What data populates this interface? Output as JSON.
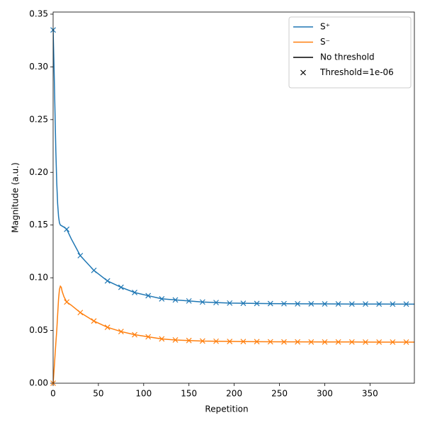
{
  "chart_data": {
    "type": "line",
    "xlabel": "Repetition",
    "ylabel": "Magnitude (a.u.)",
    "xlim": [
      0,
      399
    ],
    "ylim": [
      0,
      0.352
    ],
    "xticks": [
      0,
      50,
      100,
      150,
      200,
      250,
      300,
      350
    ],
    "yticks": [
      {
        "value": 0,
        "label": "0.00"
      },
      {
        "value": 0.05,
        "label": "0.05"
      },
      {
        "value": 0.1,
        "label": "0.10"
      },
      {
        "value": 0.15,
        "label": "0.15"
      },
      {
        "value": 0.2,
        "label": "0.20"
      },
      {
        "value": 0.25,
        "label": "0.25"
      },
      {
        "value": 0.3,
        "label": "0.30"
      },
      {
        "value": 0.35,
        "label": "0.35"
      }
    ],
    "x": [
      0,
      1,
      2,
      3,
      4,
      5,
      6,
      7,
      8,
      9,
      10,
      12,
      15,
      20,
      30,
      45,
      60,
      75,
      90,
      105,
      120,
      135,
      150,
      165,
      180,
      195,
      210,
      240,
      270,
      300,
      330,
      360,
      399
    ],
    "series": [
      {
        "name": "S⁺",
        "color": "#1f77b4",
        "values": [
          0.335,
          0.3,
          0.26,
          0.22,
          0.19,
          0.17,
          0.158,
          0.152,
          0.15,
          0.1495,
          0.149,
          0.148,
          0.146,
          0.137,
          0.121,
          0.107,
          0.097,
          0.091,
          0.086,
          0.083,
          0.08,
          0.079,
          0.078,
          0.077,
          0.0765,
          0.076,
          0.0758,
          0.0755,
          0.0753,
          0.0752,
          0.0751,
          0.0751,
          0.075
        ]
      },
      {
        "name": "S⁻",
        "color": "#ff7f0e",
        "values": [
          0,
          0.012,
          0.025,
          0.038,
          0.05,
          0.065,
          0.08,
          0.089,
          0.092,
          0.091,
          0.087,
          0.082,
          0.077,
          0.074,
          0.067,
          0.059,
          0.053,
          0.049,
          0.046,
          0.044,
          0.042,
          0.041,
          0.0405,
          0.04,
          0.0398,
          0.0396,
          0.0395,
          0.0393,
          0.0392,
          0.0391,
          0.0391,
          0.039,
          0.039
        ]
      }
    ],
    "markers": {
      "x": [
        0,
        15,
        30,
        45,
        60,
        75,
        90,
        105,
        120,
        135,
        150,
        165,
        180,
        195,
        210,
        225,
        240,
        255,
        270,
        285,
        300,
        315,
        330,
        345,
        360,
        375,
        390
      ],
      "series": [
        {
          "color": "#1f77b4",
          "values": [
            0.335,
            0.146,
            0.121,
            0.107,
            0.097,
            0.091,
            0.086,
            0.083,
            0.08,
            0.079,
            0.078,
            0.077,
            0.0765,
            0.076,
            0.0758,
            0.0756,
            0.0755,
            0.0754,
            0.0753,
            0.0753,
            0.0752,
            0.0752,
            0.0751,
            0.0751,
            0.0751,
            0.075,
            0.075
          ]
        },
        {
          "color": "#ff7f0e",
          "values": [
            0,
            0.077,
            0.067,
            0.059,
            0.053,
            0.049,
            0.046,
            0.044,
            0.042,
            0.041,
            0.0405,
            0.04,
            0.0398,
            0.0396,
            0.0395,
            0.0394,
            0.0393,
            0.0392,
            0.0392,
            0.0391,
            0.0391,
            0.0391,
            0.0391,
            0.039,
            0.039,
            0.039,
            0.039
          ]
        }
      ]
    },
    "legend": [
      {
        "label": "No threshold",
        "style": "line",
        "color": "#000000"
      },
      {
        "label": "Threshold=1e-06",
        "style": "x",
        "color": "#000000"
      }
    ],
    "legend_position": "upper right"
  }
}
